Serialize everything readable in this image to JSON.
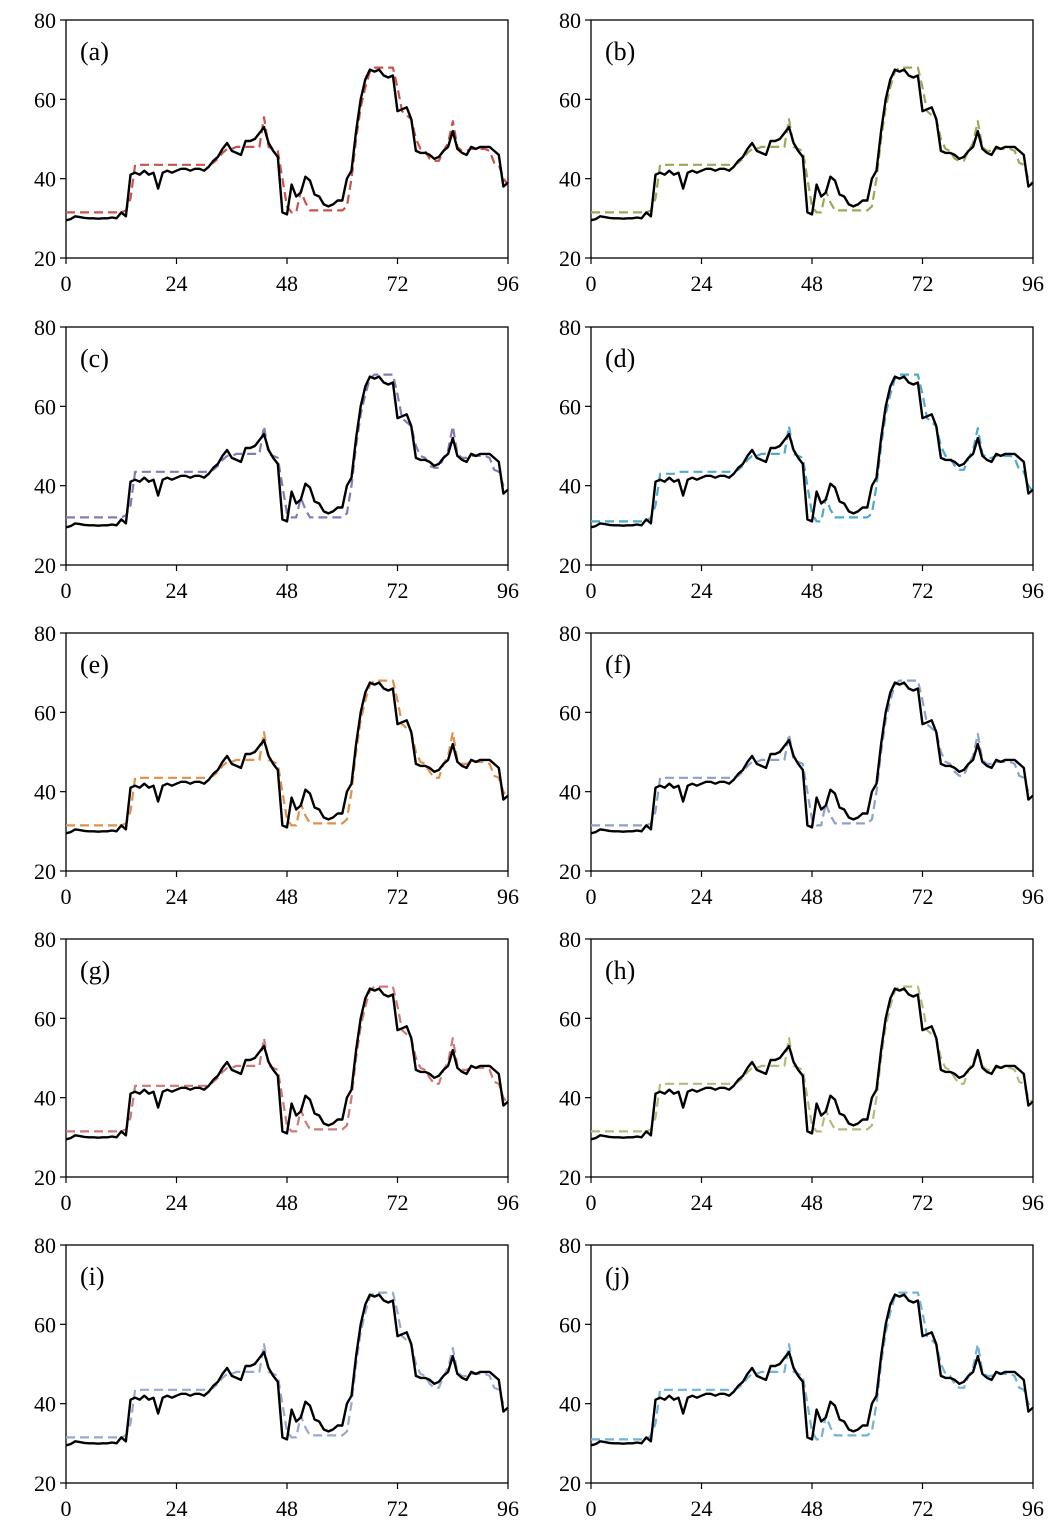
{
  "chart_data": {
    "type": "line",
    "layout": {
      "rows": 5,
      "cols": 2
    },
    "xlim": [
      0,
      96
    ],
    "ylim": [
      20,
      80
    ],
    "xticks": [
      0,
      24,
      48,
      72,
      96
    ],
    "yticks": [
      20,
      40,
      60,
      80
    ],
    "actual": {
      "color": "#000000",
      "x": [
        0,
        1,
        2,
        3,
        4,
        5,
        6,
        7,
        8,
        9,
        10,
        11,
        12,
        13,
        14,
        15,
        16,
        17,
        18,
        19,
        20,
        21,
        22,
        23,
        24,
        25,
        26,
        27,
        28,
        29,
        30,
        31,
        32,
        33,
        34,
        35,
        36,
        37,
        38,
        39,
        40,
        41,
        42,
        43,
        44,
        45,
        46,
        47,
        48,
        49,
        50,
        51,
        52,
        53,
        54,
        55,
        56,
        57,
        58,
        59,
        60,
        61,
        62,
        63,
        64,
        65,
        66,
        67,
        68,
        69,
        70,
        71,
        72,
        73,
        74,
        75,
        76,
        77,
        78,
        79,
        80,
        81,
        82,
        83,
        84,
        85,
        86,
        87,
        88,
        89,
        90,
        91,
        92,
        93,
        94,
        95,
        96
      ],
      "y": [
        29.5,
        29.8,
        30.5,
        30.3,
        30.1,
        30.0,
        30.0,
        29.9,
        30.0,
        30.0,
        30.2,
        30.0,
        31.5,
        30.5,
        41.0,
        41.5,
        41.0,
        42.0,
        41.0,
        41.5,
        37.5,
        41.5,
        42.0,
        41.5,
        42.0,
        42.5,
        42.5,
        42.0,
        42.5,
        42.5,
        42.0,
        43.0,
        44.5,
        45.5,
        47.5,
        49.0,
        47.0,
        46.5,
        46.0,
        49.5,
        49.5,
        50.0,
        51.5,
        53.0,
        49.0,
        47.0,
        45.5,
        31.5,
        31.0,
        38.5,
        35.5,
        36.5,
        40.5,
        39.5,
        36.0,
        35.5,
        33.5,
        33.0,
        33.5,
        34.5,
        34.5,
        40.0,
        42.0,
        52.0,
        60.0,
        65.0,
        67.5,
        67.0,
        67.5,
        66.0,
        65.5,
        66.0,
        57.0,
        57.5,
        58.0,
        55.0,
        47.0,
        46.5,
        46.5,
        46.0,
        45.0,
        45.5,
        47.0,
        48.0,
        52.0,
        47.5,
        46.5,
        46.0,
        48.0,
        47.5,
        48.0,
        48.0,
        48.0,
        47.0,
        46.0,
        38.0,
        39.0
      ]
    },
    "panels": [
      {
        "label": "(a)",
        "color": "#c8524c",
        "forecast": [
          31.5,
          31.5,
          31.5,
          31.5,
          31.5,
          31.5,
          31.5,
          31.5,
          31.5,
          31.5,
          31.5,
          31.5,
          31.5,
          32.0,
          35.0,
          43.5,
          43.5,
          43.5,
          43.5,
          43.5,
          43.5,
          43.5,
          43.5,
          43.5,
          43.5,
          43.5,
          43.5,
          43.5,
          43.5,
          43.5,
          43.5,
          43.5,
          44.0,
          45.0,
          46.5,
          47.5,
          47.5,
          48.0,
          48.0,
          48.0,
          48.0,
          48.0,
          48.0,
          55.5,
          48.0,
          47.5,
          47.0,
          40.0,
          33.0,
          31.5,
          31.5,
          37.0,
          34.0,
          32.0,
          32.0,
          32.0,
          32.0,
          32.0,
          32.0,
          32.0,
          32.0,
          33.0,
          40.0,
          50.0,
          58.0,
          63.0,
          67.0,
          68.0,
          68.0,
          68.0,
          68.0,
          68.0,
          63.0,
          57.0,
          56.0,
          55.0,
          50.0,
          47.5,
          47.0,
          45.0,
          44.5,
          44.5,
          47.0,
          49.0,
          54.5,
          48.0,
          47.0,
          47.0,
          47.5,
          47.5,
          47.5,
          47.5,
          47.0,
          44.0,
          43.5,
          40.0,
          38.5
        ]
      },
      {
        "label": "(b)",
        "color": "#9fa655",
        "forecast": [
          31.5,
          31.5,
          31.5,
          31.5,
          31.5,
          31.5,
          31.5,
          31.5,
          31.5,
          31.5,
          31.5,
          31.5,
          31.5,
          32.0,
          35.0,
          43.5,
          43.5,
          43.5,
          43.5,
          43.5,
          43.5,
          43.5,
          43.5,
          43.5,
          43.5,
          43.5,
          43.5,
          43.5,
          43.5,
          43.5,
          43.5,
          43.5,
          44.0,
          45.0,
          46.5,
          47.5,
          47.5,
          48.0,
          48.0,
          48.0,
          48.0,
          48.0,
          48.0,
          55.0,
          48.0,
          47.5,
          47.0,
          40.0,
          33.0,
          31.5,
          31.5,
          37.0,
          34.0,
          32.0,
          32.0,
          32.0,
          32.0,
          32.0,
          32.0,
          32.0,
          32.0,
          33.0,
          40.0,
          50.0,
          58.0,
          63.0,
          67.0,
          68.0,
          68.0,
          68.0,
          68.0,
          68.0,
          63.0,
          57.0,
          56.0,
          55.0,
          50.0,
          47.5,
          47.0,
          45.0,
          44.5,
          44.5,
          47.0,
          49.0,
          54.5,
          48.0,
          47.0,
          47.0,
          47.5,
          47.5,
          47.5,
          47.5,
          47.0,
          44.0,
          43.5,
          40.0,
          38.5
        ]
      },
      {
        "label": "(c)",
        "color": "#8a78b4",
        "forecast": [
          32.0,
          32.0,
          32.0,
          32.0,
          32.0,
          32.0,
          32.0,
          32.0,
          32.0,
          32.0,
          32.0,
          32.0,
          32.0,
          32.5,
          35.0,
          43.5,
          43.5,
          43.5,
          43.5,
          43.5,
          43.5,
          43.5,
          43.5,
          43.5,
          43.5,
          43.5,
          43.5,
          43.5,
          43.5,
          43.5,
          43.5,
          43.5,
          44.0,
          45.0,
          46.5,
          47.5,
          47.5,
          48.0,
          48.0,
          48.0,
          48.0,
          48.0,
          48.0,
          55.0,
          48.0,
          47.5,
          47.0,
          40.0,
          33.0,
          32.0,
          32.0,
          37.0,
          34.0,
          32.0,
          32.0,
          32.0,
          32.0,
          32.0,
          32.0,
          32.0,
          32.0,
          33.0,
          40.0,
          50.0,
          58.0,
          63.0,
          67.0,
          68.0,
          68.0,
          68.0,
          68.0,
          68.0,
          63.0,
          57.0,
          56.0,
          55.0,
          50.0,
          47.5,
          47.0,
          45.0,
          44.5,
          44.5,
          47.0,
          49.0,
          55.0,
          48.0,
          47.0,
          47.0,
          47.5,
          47.5,
          47.5,
          47.5,
          47.0,
          44.0,
          43.5,
          40.0,
          38.5
        ]
      },
      {
        "label": "(d)",
        "color": "#4ea9cc",
        "forecast": [
          31.0,
          31.0,
          31.0,
          31.0,
          31.0,
          31.0,
          31.0,
          31.0,
          31.0,
          31.0,
          31.0,
          31.0,
          31.0,
          32.0,
          35.0,
          43.0,
          43.0,
          43.0,
          43.0,
          43.5,
          43.5,
          43.5,
          43.5,
          43.5,
          43.5,
          43.5,
          43.5,
          43.5,
          43.5,
          43.5,
          43.5,
          43.5,
          44.0,
          45.0,
          46.5,
          47.5,
          47.5,
          48.0,
          48.0,
          48.0,
          48.0,
          48.0,
          48.0,
          55.0,
          48.0,
          47.5,
          47.0,
          40.0,
          33.0,
          31.0,
          31.0,
          37.0,
          34.0,
          32.0,
          32.0,
          32.0,
          32.0,
          32.0,
          32.0,
          32.0,
          32.0,
          33.0,
          40.0,
          50.0,
          58.0,
          63.0,
          67.0,
          68.0,
          68.0,
          68.0,
          68.0,
          68.0,
          63.0,
          57.0,
          56.0,
          55.0,
          50.0,
          47.5,
          47.0,
          45.0,
          44.0,
          44.0,
          47.0,
          49.0,
          54.5,
          48.0,
          47.0,
          47.0,
          47.5,
          47.5,
          47.5,
          47.5,
          47.0,
          44.0,
          43.5,
          40.0,
          38.5
        ]
      },
      {
        "label": "(e)",
        "color": "#e0904a",
        "forecast": [
          31.5,
          31.5,
          31.5,
          31.5,
          31.5,
          31.5,
          31.5,
          31.5,
          31.5,
          31.5,
          31.5,
          31.5,
          31.5,
          32.0,
          35.0,
          43.5,
          43.5,
          43.5,
          43.5,
          43.5,
          43.5,
          43.5,
          43.5,
          43.5,
          43.5,
          43.5,
          43.5,
          43.5,
          43.5,
          43.5,
          43.5,
          43.5,
          44.0,
          45.0,
          46.5,
          47.5,
          47.5,
          48.0,
          48.0,
          48.0,
          48.0,
          48.0,
          48.0,
          55.0,
          48.0,
          47.5,
          47.0,
          40.0,
          33.0,
          31.5,
          31.5,
          37.0,
          34.0,
          32.0,
          32.0,
          32.0,
          32.0,
          32.0,
          32.0,
          32.0,
          32.0,
          33.0,
          40.0,
          50.0,
          58.0,
          63.0,
          67.0,
          68.0,
          68.0,
          68.0,
          68.0,
          68.0,
          63.0,
          57.0,
          56.0,
          55.0,
          50.0,
          47.5,
          47.0,
          45.0,
          43.5,
          43.5,
          47.0,
          49.0,
          55.0,
          48.0,
          47.0,
          47.0,
          47.5,
          47.5,
          47.5,
          47.5,
          47.0,
          44.0,
          43.5,
          40.0,
          38.5
        ]
      },
      {
        "label": "(f)",
        "color": "#8e9fcc",
        "forecast": [
          31.5,
          31.5,
          31.5,
          31.5,
          31.5,
          31.5,
          31.5,
          31.5,
          31.5,
          31.5,
          31.5,
          31.5,
          31.5,
          32.0,
          35.0,
          43.5,
          43.5,
          43.5,
          43.5,
          43.5,
          43.5,
          43.5,
          43.5,
          43.5,
          43.5,
          43.5,
          43.5,
          43.5,
          43.5,
          43.5,
          43.5,
          43.5,
          44.0,
          45.0,
          46.5,
          47.5,
          47.5,
          48.0,
          48.0,
          48.0,
          48.0,
          48.0,
          48.0,
          54.5,
          48.0,
          47.5,
          47.0,
          40.0,
          33.0,
          31.5,
          31.5,
          37.0,
          34.0,
          32.0,
          32.0,
          32.0,
          32.0,
          32.0,
          32.0,
          32.0,
          32.0,
          33.0,
          40.0,
          50.0,
          58.0,
          63.0,
          67.0,
          68.0,
          68.0,
          68.0,
          68.0,
          68.0,
          63.0,
          57.0,
          56.0,
          55.0,
          50.0,
          47.5,
          47.0,
          45.0,
          44.0,
          44.0,
          47.0,
          49.0,
          54.5,
          48.0,
          47.0,
          47.0,
          47.5,
          47.5,
          47.5,
          47.5,
          47.0,
          44.0,
          43.5,
          40.0,
          38.5
        ]
      },
      {
        "label": "(g)",
        "color": "#d07878",
        "forecast": [
          31.5,
          31.5,
          31.5,
          31.5,
          31.5,
          31.5,
          31.5,
          31.5,
          31.5,
          31.5,
          31.5,
          31.5,
          31.5,
          32.0,
          35.0,
          43.0,
          43.0,
          43.0,
          43.0,
          43.0,
          43.0,
          43.0,
          43.0,
          43.0,
          43.0,
          43.0,
          43.0,
          43.0,
          43.0,
          43.0,
          43.0,
          43.0,
          44.0,
          45.0,
          46.5,
          47.5,
          47.5,
          48.0,
          48.0,
          48.0,
          48.0,
          48.0,
          48.0,
          55.0,
          48.0,
          47.5,
          47.0,
          40.0,
          33.0,
          31.5,
          31.5,
          37.0,
          34.0,
          32.0,
          32.0,
          32.0,
          32.0,
          32.0,
          32.0,
          32.0,
          32.0,
          33.0,
          40.0,
          50.0,
          58.0,
          63.0,
          67.0,
          68.0,
          68.0,
          68.0,
          68.0,
          68.0,
          63.0,
          57.0,
          56.0,
          55.0,
          50.0,
          47.5,
          47.0,
          45.0,
          43.5,
          43.5,
          47.0,
          49.0,
          55.0,
          48.0,
          47.0,
          47.0,
          47.5,
          47.5,
          47.5,
          47.5,
          47.0,
          44.0,
          43.5,
          40.0,
          38.5
        ]
      },
      {
        "label": "(h)",
        "color": "#b8b87a",
        "forecast": [
          31.5,
          31.5,
          31.5,
          31.5,
          31.5,
          31.5,
          31.5,
          31.5,
          31.5,
          31.5,
          31.5,
          31.5,
          31.5,
          32.0,
          35.0,
          43.5,
          43.5,
          43.5,
          43.5,
          43.5,
          43.5,
          43.5,
          43.5,
          43.5,
          43.5,
          43.5,
          43.5,
          43.5,
          43.5,
          43.5,
          43.5,
          43.5,
          44.0,
          45.0,
          46.5,
          47.5,
          47.5,
          48.0,
          48.0,
          48.0,
          48.0,
          48.0,
          48.0,
          55.0,
          48.0,
          47.5,
          47.0,
          40.0,
          33.0,
          31.5,
          31.5,
          37.0,
          34.0,
          32.0,
          32.0,
          32.0,
          32.0,
          32.0,
          32.0,
          32.0,
          32.0,
          33.0,
          40.0,
          50.0,
          58.0,
          63.0,
          67.0,
          68.0,
          68.0,
          68.0,
          68.0,
          68.0,
          63.0,
          57.0,
          56.0,
          55.0,
          50.0,
          47.5,
          47.0,
          45.0,
          43.5,
          43.5,
          47.0,
          49.0,
          52.0,
          48.0,
          47.0,
          47.0,
          47.5,
          47.5,
          47.5,
          47.5,
          47.0,
          44.0,
          43.5,
          40.0,
          38.5
        ]
      },
      {
        "label": "(i)",
        "color": "#9aa8cc",
        "forecast": [
          31.5,
          31.5,
          31.5,
          31.5,
          31.5,
          31.5,
          31.5,
          31.5,
          31.5,
          31.5,
          31.5,
          31.5,
          31.5,
          32.0,
          35.0,
          43.5,
          43.5,
          43.5,
          43.5,
          43.5,
          43.5,
          43.5,
          43.5,
          43.5,
          43.5,
          43.5,
          43.5,
          43.5,
          43.5,
          43.5,
          43.5,
          43.5,
          44.0,
          45.0,
          46.5,
          47.5,
          47.5,
          48.0,
          48.0,
          48.0,
          48.0,
          48.0,
          48.0,
          55.0,
          48.0,
          47.5,
          47.0,
          40.0,
          33.0,
          31.5,
          31.5,
          37.0,
          34.0,
          32.0,
          32.0,
          32.0,
          32.0,
          32.0,
          32.0,
          32.0,
          32.0,
          33.0,
          40.0,
          50.0,
          58.0,
          63.0,
          67.0,
          68.0,
          68.0,
          68.0,
          68.0,
          68.0,
          63.0,
          57.0,
          56.0,
          55.0,
          50.0,
          47.5,
          47.0,
          45.0,
          44.0,
          44.0,
          47.0,
          49.0,
          54.0,
          48.0,
          47.0,
          47.0,
          47.5,
          47.5,
          47.5,
          47.5,
          47.0,
          44.0,
          43.5,
          40.0,
          38.5
        ]
      },
      {
        "label": "(j)",
        "color": "#6eb4d8",
        "forecast": [
          31.0,
          31.0,
          31.0,
          31.0,
          31.0,
          31.0,
          31.0,
          31.0,
          31.0,
          31.0,
          31.0,
          31.0,
          31.0,
          32.0,
          35.0,
          43.5,
          43.5,
          43.5,
          43.5,
          43.5,
          43.5,
          43.5,
          43.5,
          43.5,
          43.5,
          43.5,
          43.5,
          43.5,
          43.5,
          43.5,
          43.5,
          43.5,
          44.0,
          45.0,
          46.5,
          47.5,
          47.5,
          48.0,
          48.0,
          48.0,
          48.0,
          48.0,
          48.0,
          55.0,
          48.0,
          47.5,
          47.0,
          40.0,
          33.0,
          31.0,
          31.0,
          37.0,
          34.0,
          32.0,
          32.0,
          32.0,
          32.0,
          32.0,
          32.0,
          32.0,
          32.0,
          33.0,
          40.0,
          50.0,
          58.0,
          63.0,
          67.0,
          68.0,
          68.0,
          68.0,
          68.0,
          68.0,
          63.0,
          57.0,
          56.0,
          55.0,
          50.0,
          47.5,
          47.0,
          45.0,
          44.0,
          44.0,
          47.0,
          49.0,
          55.0,
          48.0,
          47.0,
          47.0,
          47.5,
          47.5,
          47.5,
          47.5,
          47.0,
          44.0,
          43.5,
          40.0,
          38.5
        ]
      }
    ]
  }
}
